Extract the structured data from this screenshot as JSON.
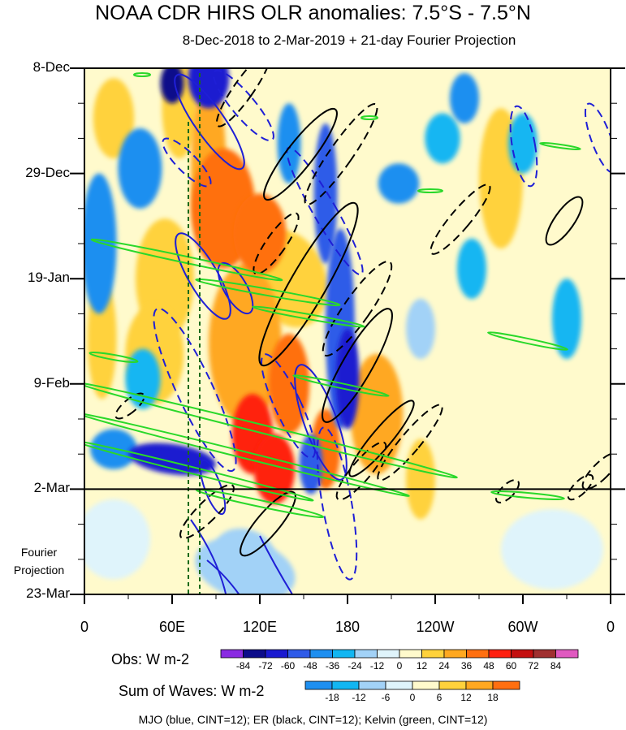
{
  "chart_data": {
    "type": "heatmap",
    "title": "NOAA CDR HIRS OLR anomalies: 7.5°S - 7.5°N",
    "subtitle": "8-Dec-2018 to 2-Mar-2019 + 21-day Fourier Projection",
    "x_ticks": [
      "0",
      "60E",
      "120E",
      "180",
      "120W",
      "60W",
      "0"
    ],
    "x_tick_lon": [
      0,
      60,
      120,
      180,
      240,
      300,
      360
    ],
    "y_ticks": [
      "8-Dec",
      "29-Dec",
      "19-Jan",
      "9-Feb",
      "2-Mar",
      "23-Mar"
    ],
    "y_tick_day": [
      0,
      21,
      42,
      63,
      84,
      105
    ],
    "projection_label": "Fourier Projection",
    "obs_colorbar": {
      "label": "Obs: W m-2",
      "levels": [
        "-84",
        "-72",
        "-60",
        "-48",
        "-36",
        "-24",
        "-12",
        "0",
        "12",
        "24",
        "36",
        "48",
        "60",
        "72",
        "84"
      ],
      "colors": [
        "#8a2be2",
        "#0c0c8a",
        "#1a1ad0",
        "#2f5be8",
        "#1e8ff0",
        "#12b6f2",
        "#a2d2f7",
        "#dff4fb",
        "#fffacc",
        "#ffd23c",
        "#ffa820",
        "#ff6f10",
        "#ff2010",
        "#c41010",
        "#a03030",
        "#e05ac0"
      ]
    },
    "wave_colorbar": {
      "label": "Sum of Waves: W m-2",
      "levels": [
        "-18",
        "-12",
        "-6",
        "0",
        "6",
        "12",
        "18"
      ],
      "colors": [
        "#1e8ff0",
        "#12b6f2",
        "#a2d2f7",
        "#dff4fb",
        "#fffacc",
        "#ffd23c",
        "#ffa820",
        "#ff6f10"
      ]
    },
    "contours": [
      {
        "name": "MJO",
        "color": "#1f1fd6",
        "cint": 12
      },
      {
        "name": "ER",
        "color": "#000000",
        "cint": 12
      },
      {
        "name": "Kelvin",
        "color": "#2ad82a",
        "cint": 12
      }
    ],
    "footnote": "MJO (blue, CINT=12); ER (black, CINT=12); Kelvin (green, CINT=12)",
    "observation_end": "2-Mar",
    "reference_lines_lon": [
      72,
      80
    ],
    "blobs": [
      {
        "lon": 95,
        "day": 28,
        "rx": 22,
        "ry": 12,
        "v": 48,
        "rot": 0
      },
      {
        "lon": 120,
        "day": 33,
        "rx": 18,
        "ry": 8,
        "v": 48,
        "rot": 0
      },
      {
        "lon": 85,
        "day": 20,
        "rx": 12,
        "ry": 18,
        "v": 36,
        "rot": 0
      },
      {
        "lon": 140,
        "day": 42,
        "rx": 25,
        "ry": 10,
        "v": 24,
        "rot": -20
      },
      {
        "lon": 110,
        "day": 55,
        "rx": 25,
        "ry": 16,
        "v": 36,
        "rot": 0
      },
      {
        "lon": 140,
        "day": 63,
        "rx": 14,
        "ry": 10,
        "v": 48,
        "rot": 0
      },
      {
        "lon": 115,
        "day": 73,
        "rx": 14,
        "ry": 8,
        "v": 60,
        "rot": 0
      },
      {
        "lon": 130,
        "day": 80,
        "rx": 14,
        "ry": 7,
        "v": 60,
        "rot": 0
      },
      {
        "lon": 165,
        "day": 76,
        "rx": 10,
        "ry": 8,
        "v": 48,
        "rot": 0
      },
      {
        "lon": 55,
        "day": 42,
        "rx": 20,
        "ry": 12,
        "v": 24,
        "rot": 0
      },
      {
        "lon": 48,
        "day": 57,
        "rx": 20,
        "ry": 10,
        "v": 24,
        "rot": 0
      },
      {
        "lon": 20,
        "day": 10,
        "rx": 14,
        "ry": 8,
        "v": 24,
        "rot": 0
      },
      {
        "lon": 12,
        "day": 54,
        "rx": 10,
        "ry": 12,
        "v": 24,
        "rot": 0
      },
      {
        "lon": 65,
        "day": 8,
        "rx": 12,
        "ry": 10,
        "v": 24,
        "rot": 0
      },
      {
        "lon": 200,
        "day": 69,
        "rx": 18,
        "ry": 12,
        "v": 36,
        "rot": 0
      },
      {
        "lon": 230,
        "day": 82,
        "rx": 10,
        "ry": 8,
        "v": 24,
        "rot": 0
      },
      {
        "lon": 285,
        "day": 22,
        "rx": 15,
        "ry": 14,
        "v": 24,
        "rot": 0
      },
      {
        "lon": 300,
        "day": 8,
        "rx": 12,
        "ry": 8,
        "v": 12,
        "rot": 0
      },
      {
        "lon": 335,
        "day": 5,
        "rx": 12,
        "ry": 8,
        "v": 12,
        "rot": 0
      },
      {
        "lon": 270,
        "day": 55,
        "rx": 12,
        "ry": 10,
        "v": 12,
        "rot": 0
      },
      {
        "lon": 335,
        "day": 45,
        "rx": 10,
        "ry": 14,
        "v": 12,
        "rot": 0
      },
      {
        "lon": 320,
        "day": 66,
        "rx": 12,
        "ry": 8,
        "v": 12,
        "rot": 0
      },
      {
        "lon": 255,
        "day": 35,
        "rx": 12,
        "ry": 8,
        "v": 12,
        "rot": 0
      },
      {
        "lon": 63,
        "day": 90,
        "rx": 6,
        "ry": 4,
        "v": 12,
        "rot": 0
      },
      {
        "lon": 190,
        "day": 95,
        "rx": 16,
        "ry": 8,
        "v": 12,
        "rot": 0
      },
      {
        "lon": 175,
        "day": 104,
        "rx": 8,
        "ry": 3,
        "v": 12,
        "rot": 0
      },
      {
        "lon": 315,
        "day": 86,
        "rx": 15,
        "ry": 3,
        "v": 6,
        "rot": 0
      },
      {
        "lon": 200,
        "day": 100,
        "rx": 15,
        "ry": 4,
        "v": 6,
        "rot": 0
      },
      {
        "lon": 60,
        "day": 3,
        "rx": 8,
        "ry": 4,
        "v": -72,
        "rot": 0
      },
      {
        "lon": 175,
        "day": 52,
        "rx": 10,
        "ry": 20,
        "v": -48,
        "rot": 0
      },
      {
        "lon": 180,
        "day": 62,
        "rx": 8,
        "ry": 10,
        "v": -60,
        "rot": 0
      },
      {
        "lon": 165,
        "day": 25,
        "rx": 8,
        "ry": 14,
        "v": -48,
        "rot": 0
      },
      {
        "lon": 85,
        "day": 2,
        "rx": 14,
        "ry": 6,
        "v": -60,
        "rot": 0
      },
      {
        "lon": 60,
        "day": 78,
        "rx": 30,
        "ry": 3,
        "v": -60,
        "rot": 8
      },
      {
        "lon": 20,
        "day": 76,
        "rx": 16,
        "ry": 4,
        "v": -36,
        "rot": 0
      },
      {
        "lon": 10,
        "day": 35,
        "rx": 12,
        "ry": 14,
        "v": -36,
        "rot": 0
      },
      {
        "lon": 38,
        "day": 20,
        "rx": 15,
        "ry": 8,
        "v": -36,
        "rot": 0
      },
      {
        "lon": 40,
        "day": 62,
        "rx": 12,
        "ry": 6,
        "v": -24,
        "rot": 0
      },
      {
        "lon": 215,
        "day": 23,
        "rx": 14,
        "ry": 4,
        "v": -36,
        "rot": 0
      },
      {
        "lon": 245,
        "day": 14,
        "rx": 12,
        "ry": 5,
        "v": -24,
        "rot": 0
      },
      {
        "lon": 260,
        "day": 6,
        "rx": 10,
        "ry": 5,
        "v": -36,
        "rot": 0
      },
      {
        "lon": 300,
        "day": 15,
        "rx": 10,
        "ry": 6,
        "v": -24,
        "rot": 0
      },
      {
        "lon": 330,
        "day": 50,
        "rx": 10,
        "ry": 8,
        "v": -24,
        "rot": 0
      },
      {
        "lon": 265,
        "day": 40,
        "rx": 10,
        "ry": 6,
        "v": -24,
        "rot": 0
      },
      {
        "lon": 230,
        "day": 52,
        "rx": 10,
        "ry": 6,
        "v": -12,
        "rot": 0
      },
      {
        "lon": 155,
        "day": 79,
        "rx": 8,
        "ry": 6,
        "v": -48,
        "rot": 0
      },
      {
        "lon": 140,
        "day": 15,
        "rx": 8,
        "ry": 8,
        "v": -36,
        "rot": 0
      },
      {
        "lon": 110,
        "day": 100,
        "rx": 35,
        "ry": 6,
        "v": -18,
        "rot": 15
      },
      {
        "lon": 110,
        "day": 96,
        "rx": 20,
        "ry": 4,
        "v": -12,
        "rot": 15
      },
      {
        "lon": 20,
        "day": 94,
        "rx": 25,
        "ry": 8,
        "v": -6,
        "rot": 0
      },
      {
        "lon": 320,
        "day": 96,
        "rx": 35,
        "ry": 8,
        "v": -6,
        "rot": 0
      }
    ]
  }
}
